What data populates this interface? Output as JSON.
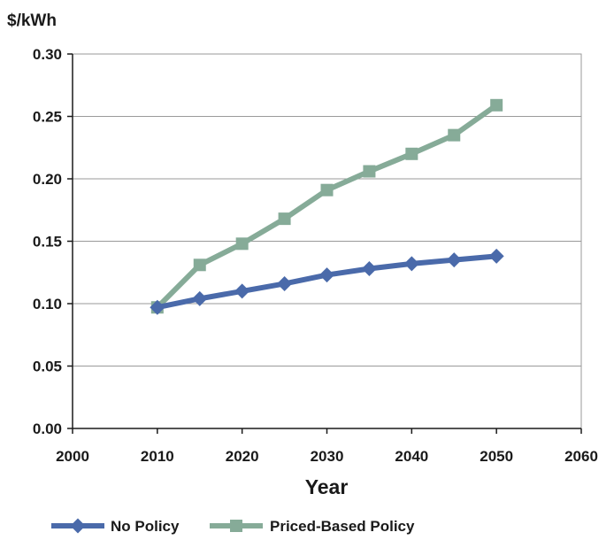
{
  "chart_data": {
    "type": "line",
    "title": "",
    "ylabel": "$/kWh",
    "xlabel": "Year",
    "xlim": [
      2000,
      2060
    ],
    "ylim": [
      0,
      0.3
    ],
    "x_ticks": [
      "2000",
      "2010",
      "2020",
      "2030",
      "2040",
      "2050",
      "2060"
    ],
    "y_ticks": [
      "0.00",
      "0.05",
      "0.10",
      "0.15",
      "0.20",
      "0.25",
      "0.30"
    ],
    "grid": true,
    "legend_position": "bottom",
    "series": [
      {
        "name": "No Policy",
        "color": "#4a6aaa",
        "marker": "diamond",
        "x": [
          2010,
          2015,
          2020,
          2025,
          2030,
          2035,
          2040,
          2045,
          2050
        ],
        "y": [
          0.097,
          0.104,
          0.11,
          0.116,
          0.123,
          0.128,
          0.132,
          0.135,
          0.138
        ]
      },
      {
        "name": "Priced-Based Policy",
        "color": "#86ab98",
        "marker": "square",
        "x": [
          2010,
          2015,
          2020,
          2025,
          2030,
          2035,
          2040,
          2045,
          2050
        ],
        "y": [
          0.097,
          0.131,
          0.148,
          0.168,
          0.191,
          0.206,
          0.22,
          0.235,
          0.259
        ]
      }
    ]
  }
}
